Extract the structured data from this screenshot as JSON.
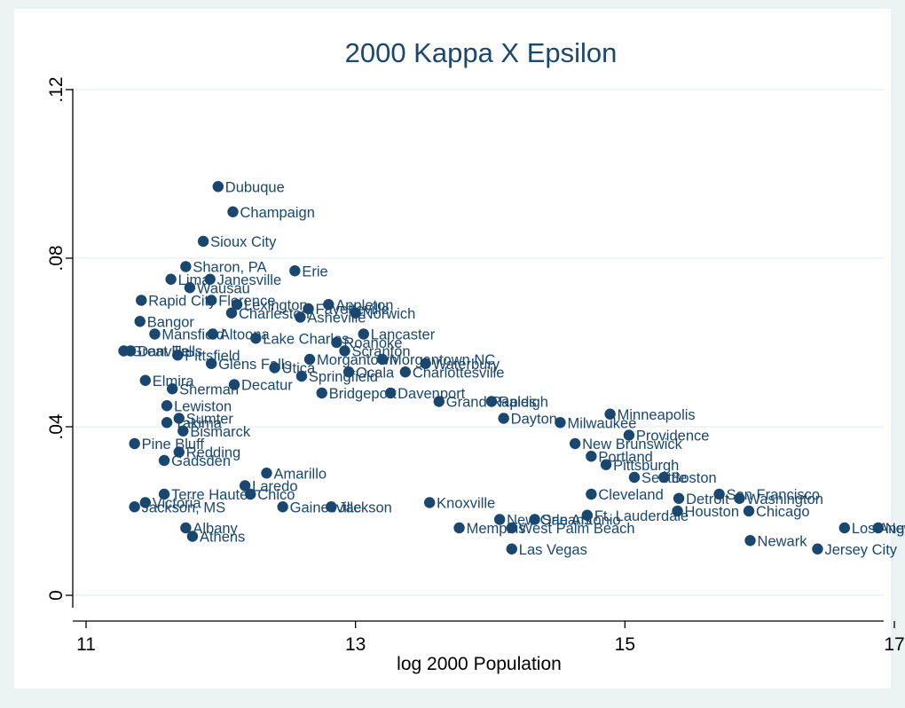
{
  "chart_data": {
    "type": "scatter",
    "title": "2000 Kappa X Epsilon",
    "xlabel": "log 2000 Population",
    "ylabel": "",
    "xlim": [
      11,
      17
    ],
    "ylim": [
      0,
      0.12
    ],
    "xticks": [
      11,
      13,
      15,
      17
    ],
    "yticks": [
      0,
      0.04,
      0.08,
      0.12
    ],
    "xtick_labels": [
      "11",
      "13",
      "15",
      "17"
    ],
    "ytick_labels": [
      "0",
      ".04",
      ".08",
      ".12"
    ],
    "grid": true,
    "legend": "none",
    "colors": {
      "marker": "#1a476f",
      "label": "#1a476f",
      "background": "#eaf2f3",
      "plot": "#ffffff",
      "grid": "#eaf2f3"
    },
    "points": [
      {
        "x": 11.98,
        "y": 0.097,
        "label": "Dubuque"
      },
      {
        "x": 12.09,
        "y": 0.091,
        "label": "Champaign"
      },
      {
        "x": 11.87,
        "y": 0.084,
        "label": "Sioux City"
      },
      {
        "x": 11.74,
        "y": 0.078,
        "label": "Sharon, PA"
      },
      {
        "x": 12.55,
        "y": 0.077,
        "label": "Erie"
      },
      {
        "x": 11.63,
        "y": 0.075,
        "label": "Lima"
      },
      {
        "x": 11.92,
        "y": 0.075,
        "label": "Janesville"
      },
      {
        "x": 11.77,
        "y": 0.073,
        "label": "Wausau"
      },
      {
        "x": 11.41,
        "y": 0.07,
        "label": "Rapid City"
      },
      {
        "x": 11.93,
        "y": 0.07,
        "label": "Florence"
      },
      {
        "x": 12.12,
        "y": 0.069,
        "label": "Lexington"
      },
      {
        "x": 12.8,
        "y": 0.069,
        "label": "Appleton"
      },
      {
        "x": 12.65,
        "y": 0.068,
        "label": "Fayetteville"
      },
      {
        "x": 13.0,
        "y": 0.067,
        "label": "Norwich"
      },
      {
        "x": 12.08,
        "y": 0.067,
        "label": "Charleston"
      },
      {
        "x": 12.59,
        "y": 0.066,
        "label": "Asheville"
      },
      {
        "x": 11.4,
        "y": 0.065,
        "label": "Bangor"
      },
      {
        "x": 13.06,
        "y": 0.062,
        "label": "Lancaster"
      },
      {
        "x": 11.51,
        "y": 0.062,
        "label": "Mansfield"
      },
      {
        "x": 11.94,
        "y": 0.062,
        "label": "Altoona"
      },
      {
        "x": 12.26,
        "y": 0.061,
        "label": "Lake Charles"
      },
      {
        "x": 12.86,
        "y": 0.06,
        "label": "Roanoke"
      },
      {
        "x": 11.33,
        "y": 0.058,
        "label": "Danville"
      },
      {
        "x": 11.28,
        "y": 0.058,
        "label": "Great Falls"
      },
      {
        "x": 11.68,
        "y": 0.057,
        "label": "Pittsfield"
      },
      {
        "x": 12.92,
        "y": 0.058,
        "label": "Scranton"
      },
      {
        "x": 12.66,
        "y": 0.056,
        "label": "Morgantown"
      },
      {
        "x": 13.2,
        "y": 0.056,
        "label": "Morgantown NC"
      },
      {
        "x": 13.52,
        "y": 0.055,
        "label": "Waterbury"
      },
      {
        "x": 11.93,
        "y": 0.055,
        "label": "Glens Falls"
      },
      {
        "x": 12.4,
        "y": 0.054,
        "label": "Utica"
      },
      {
        "x": 12.95,
        "y": 0.053,
        "label": "Ocala"
      },
      {
        "x": 13.37,
        "y": 0.053,
        "label": "Charlottesville"
      },
      {
        "x": 11.44,
        "y": 0.051,
        "label": "Elmira"
      },
      {
        "x": 12.1,
        "y": 0.05,
        "label": "Decatur"
      },
      {
        "x": 12.6,
        "y": 0.052,
        "label": "Springfield"
      },
      {
        "x": 11.64,
        "y": 0.049,
        "label": "Sherman"
      },
      {
        "x": 12.75,
        "y": 0.048,
        "label": "Bridgeport"
      },
      {
        "x": 13.26,
        "y": 0.048,
        "label": "Davenport"
      },
      {
        "x": 13.62,
        "y": 0.046,
        "label": "Grand Rapids"
      },
      {
        "x": 14.01,
        "y": 0.046,
        "label": "Raleigh"
      },
      {
        "x": 11.6,
        "y": 0.045,
        "label": "Lewiston"
      },
      {
        "x": 14.89,
        "y": 0.043,
        "label": "Minneapolis"
      },
      {
        "x": 14.52,
        "y": 0.041,
        "label": "Milwaukee"
      },
      {
        "x": 14.1,
        "y": 0.042,
        "label": "Dayton"
      },
      {
        "x": 11.69,
        "y": 0.042,
        "label": "Sumter"
      },
      {
        "x": 11.6,
        "y": 0.041,
        "label": "Yakima"
      },
      {
        "x": 15.03,
        "y": 0.038,
        "label": "Providence"
      },
      {
        "x": 11.72,
        "y": 0.039,
        "label": "Bismarck"
      },
      {
        "x": 11.36,
        "y": 0.036,
        "label": "Pine Bluff"
      },
      {
        "x": 14.63,
        "y": 0.036,
        "label": "New Brunswick"
      },
      {
        "x": 11.69,
        "y": 0.034,
        "label": "Redding"
      },
      {
        "x": 14.75,
        "y": 0.033,
        "label": "Portland"
      },
      {
        "x": 11.58,
        "y": 0.032,
        "label": "Gadsden"
      },
      {
        "x": 14.86,
        "y": 0.031,
        "label": "Pittsburgh"
      },
      {
        "x": 12.34,
        "y": 0.029,
        "label": "Amarillo"
      },
      {
        "x": 15.29,
        "y": 0.028,
        "label": "Boston"
      },
      {
        "x": 15.07,
        "y": 0.028,
        "label": "Seattle"
      },
      {
        "x": 12.18,
        "y": 0.026,
        "label": "Laredo"
      },
      {
        "x": 11.58,
        "y": 0.024,
        "label": "Terre Haute"
      },
      {
        "x": 12.22,
        "y": 0.024,
        "label": "Chico"
      },
      {
        "x": 15.7,
        "y": 0.024,
        "label": "San Francisco"
      },
      {
        "x": 15.4,
        "y": 0.023,
        "label": "Detroit"
      },
      {
        "x": 15.85,
        "y": 0.023,
        "label": "Washington"
      },
      {
        "x": 14.75,
        "y": 0.024,
        "label": "Cleveland"
      },
      {
        "x": 11.44,
        "y": 0.022,
        "label": "Victoria"
      },
      {
        "x": 11.36,
        "y": 0.021,
        "label": "Jackson, MS"
      },
      {
        "x": 12.46,
        "y": 0.021,
        "label": "Gainesville"
      },
      {
        "x": 12.82,
        "y": 0.021,
        "label": "Jackson"
      },
      {
        "x": 13.55,
        "y": 0.022,
        "label": "Knoxville"
      },
      {
        "x": 15.39,
        "y": 0.02,
        "label": "Houston"
      },
      {
        "x": 15.92,
        "y": 0.02,
        "label": "Chicago"
      },
      {
        "x": 14.72,
        "y": 0.019,
        "label": "Ft. Lauderdale"
      },
      {
        "x": 14.07,
        "y": 0.018,
        "label": "New Orleans"
      },
      {
        "x": 14.33,
        "y": 0.018,
        "label": "San Antonio"
      },
      {
        "x": 11.74,
        "y": 0.016,
        "label": "Albany"
      },
      {
        "x": 11.79,
        "y": 0.014,
        "label": "Athens"
      },
      {
        "x": 13.77,
        "y": 0.016,
        "label": "Memphis"
      },
      {
        "x": 14.16,
        "y": 0.016,
        "label": "West Palm Beach"
      },
      {
        "x": 16.63,
        "y": 0.016,
        "label": "Los Angeles"
      },
      {
        "x": 16.88,
        "y": 0.016,
        "label": "New York"
      },
      {
        "x": 15.93,
        "y": 0.013,
        "label": "Newark"
      },
      {
        "x": 14.16,
        "y": 0.011,
        "label": "Las Vegas"
      },
      {
        "x": 16.43,
        "y": 0.011,
        "label": "Jersey City"
      }
    ]
  }
}
